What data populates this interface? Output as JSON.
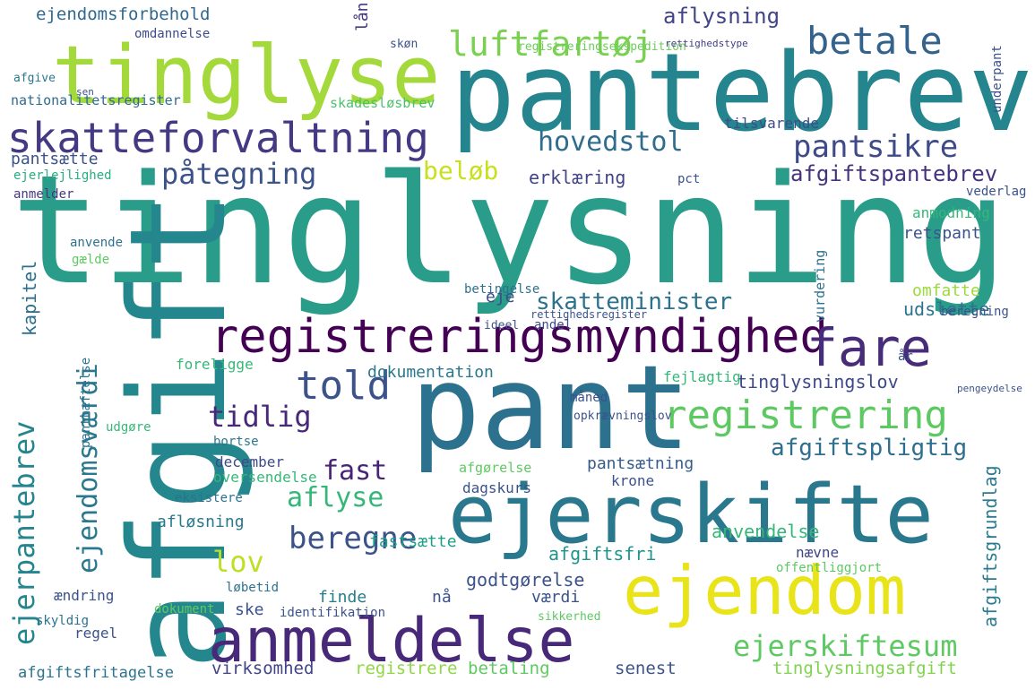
{
  "cloud": {
    "words": [
      {
        "text": "tinglysning",
        "color": "#2a9d8a"
      },
      {
        "text": "pantebrev",
        "color": "#25858e"
      },
      {
        "text": "tinglyse",
        "color": "#a3d93a"
      },
      {
        "text": "afgift",
        "color": "#24878e"
      },
      {
        "text": "pant",
        "color": "#2c728e"
      },
      {
        "text": "ejerskifte",
        "color": "#2a788e"
      },
      {
        "text": "ejendom",
        "color": "#e8e419"
      },
      {
        "text": "anmeldelse",
        "color": "#482878"
      },
      {
        "text": "registreringsmyndighed",
        "color": "#440154"
      },
      {
        "text": "skatteforvaltning",
        "color": "#443983"
      },
      {
        "text": "fare",
        "color": "#472c7a"
      },
      {
        "text": "betale",
        "color": "#33638d"
      },
      {
        "text": "luftfartøj",
        "color": "#7ad151"
      },
      {
        "text": "registrering",
        "color": "#5ec962"
      },
      {
        "text": "told",
        "color": "#3b528b"
      },
      {
        "text": "ejerpantebrev",
        "color": "#25858e"
      },
      {
        "text": "ejendomsværdi",
        "color": "#2a788e"
      },
      {
        "text": "pantsikre",
        "color": "#3e4a89"
      },
      {
        "text": "påtegning",
        "color": "#3b528b"
      },
      {
        "text": "hovedstol",
        "color": "#2f6c8e"
      },
      {
        "text": "ejerskiftesum",
        "color": "#5ec962"
      },
      {
        "text": "skatteminister",
        "color": "#2c728e"
      },
      {
        "text": "tidlig",
        "color": "#482878"
      },
      {
        "text": "beregne",
        "color": "#3b528b"
      },
      {
        "text": "fast",
        "color": "#482475"
      },
      {
        "text": "aflyse",
        "color": "#35b779"
      },
      {
        "text": "lov",
        "color": "#bddf26"
      },
      {
        "text": "beløb",
        "color": "#c8e020"
      },
      {
        "text": "afgiftspantebrev",
        "color": "#46337e"
      },
      {
        "text": "afgiftspligtig",
        "color": "#2e6e8e"
      },
      {
        "text": "aflysning",
        "color": "#414487"
      },
      {
        "text": "tinglysningslov",
        "color": "#3e4989"
      },
      {
        "text": "erklæring",
        "color": "#414487"
      },
      {
        "text": "ejendomsforbehold",
        "color": "#31688e"
      },
      {
        "text": "afgiftsgrundlag",
        "color": "#287c8e"
      },
      {
        "text": "udslette",
        "color": "#2c738e"
      },
      {
        "text": "kapitel",
        "color": "#2d708e"
      },
      {
        "text": "pantsætte",
        "color": "#3b528b"
      },
      {
        "text": "pantsætning",
        "color": "#365c8d"
      },
      {
        "text": "afgiftsfri",
        "color": "#1f948c"
      },
      {
        "text": "anvendelse",
        "color": "#35b779"
      },
      {
        "text": "godtgørelse",
        "color": "#3b528b"
      },
      {
        "text": "virksomhed",
        "color": "#414487"
      },
      {
        "text": "registrere",
        "color": "#8fd744"
      },
      {
        "text": "betaling",
        "color": "#5ec962"
      },
      {
        "text": "senest",
        "color": "#3b528b"
      },
      {
        "text": "tinglysningsafgift",
        "color": "#7fd34e"
      },
      {
        "text": "afgiftsfritagelse",
        "color": "#2c738e"
      },
      {
        "text": "dokumentation",
        "color": "#2a788e"
      },
      {
        "text": "retspant",
        "color": "#3b528b"
      },
      {
        "text": "omfatte",
        "color": "#9bd93c"
      },
      {
        "text": "nationalitetsregister",
        "color": "#2f6b8e"
      },
      {
        "text": "skadesløsbrev",
        "color": "#4ac16d"
      },
      {
        "text": "tilsvarende",
        "color": "#3e4c8a"
      },
      {
        "text": "ejerlejlighed",
        "color": "#28ae80"
      },
      {
        "text": "anmelder",
        "color": "#453781"
      },
      {
        "text": "anvende",
        "color": "#2c738e"
      },
      {
        "text": "gælde",
        "color": "#5ec962"
      },
      {
        "text": "omdannelse",
        "color": "#3e4c8a"
      },
      {
        "text": "afgive",
        "color": "#2a788e"
      },
      {
        "text": "sen",
        "color": "#3b528b"
      },
      {
        "text": "registreringsekspedition",
        "color": "#6ccd5a"
      },
      {
        "text": "rettighedstype",
        "color": "#424086"
      },
      {
        "text": "skøn",
        "color": "#3b528b"
      },
      {
        "text": "lån",
        "color": "#443983"
      },
      {
        "text": "eje",
        "color": "#3e4a89"
      },
      {
        "text": "andel",
        "color": "#3e4a89"
      },
      {
        "text": "december",
        "color": "#3e4989"
      },
      {
        "text": "oversendelse",
        "color": "#35b779"
      },
      {
        "text": "dagskurs",
        "color": "#3b528b"
      },
      {
        "text": "krone",
        "color": "#3b528b"
      },
      {
        "text": "afgørelse",
        "color": "#5ec962"
      },
      {
        "text": "eksistere",
        "color": "#2c728e"
      },
      {
        "text": "afløsning",
        "color": "#2a788e"
      },
      {
        "text": "fastsætte",
        "color": "#1f9f88"
      },
      {
        "text": "nævne",
        "color": "#404588"
      },
      {
        "text": "offentliggjort",
        "color": "#5ec962"
      },
      {
        "text": "løbetid",
        "color": "#2c728e"
      },
      {
        "text": "finde",
        "color": "#287c8e"
      },
      {
        "text": "nå",
        "color": "#3b528b"
      },
      {
        "text": "værdi",
        "color": "#3b528b"
      },
      {
        "text": "ændring",
        "color": "#3b528b"
      },
      {
        "text": "regel",
        "color": "#3b528b"
      },
      {
        "text": "ske",
        "color": "#3b528b"
      },
      {
        "text": "identifikation",
        "color": "#3b528b"
      },
      {
        "text": "dokument",
        "color": "#5ec962"
      },
      {
        "text": "sikkerhed",
        "color": "#5ec962"
      },
      {
        "text": "skyldig",
        "color": "#2c728e"
      },
      {
        "text": "panthæftelse",
        "color": "#2c728e"
      },
      {
        "text": "foreligge",
        "color": "#35b779"
      },
      {
        "text": "udgøre",
        "color": "#35b779"
      },
      {
        "text": "bortse",
        "color": "#2a788e"
      },
      {
        "text": "ideel",
        "color": "#3b528b"
      },
      {
        "text": "rettighedsregister",
        "color": "#3b528b"
      },
      {
        "text": "betingelse",
        "color": "#2c728e"
      },
      {
        "text": "måned",
        "color": "#3b528b"
      },
      {
        "text": "fejlagtig",
        "color": "#35b779"
      },
      {
        "text": "opkrævningslov",
        "color": "#3b528b"
      },
      {
        "text": "beregning",
        "color": "#3b528b"
      },
      {
        "text": "pengeydelse",
        "color": "#3b528b"
      },
      {
        "text": "anmodning",
        "color": "#35b779"
      },
      {
        "text": "vurdering",
        "color": "#2c728e"
      },
      {
        "text": "underpant",
        "color": "#3b528b"
      },
      {
        "text": "pct",
        "color": "#3b528b"
      },
      {
        "text": "vederlag",
        "color": "#3b528b"
      },
      {
        "text": "år",
        "color": "#3b528b"
      }
    ]
  }
}
